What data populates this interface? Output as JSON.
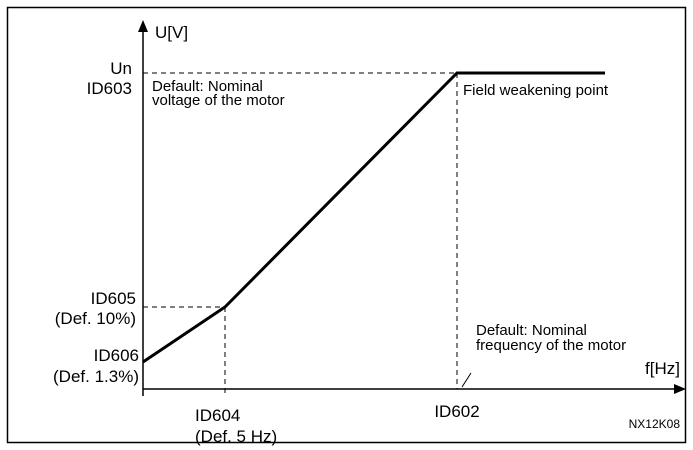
{
  "axes": {
    "y_label": "U[V]",
    "x_label": "f[Hz]"
  },
  "y_points": [
    {
      "lines": [
        "Un",
        "ID603"
      ]
    },
    {
      "lines": [
        "ID605",
        "(Def. 10%)"
      ]
    },
    {
      "lines": [
        "ID606",
        "(Def. 1.3%)"
      ]
    }
  ],
  "x_points": [
    {
      "lines": [
        "ID604",
        "(Def. 5 Hz)"
      ]
    },
    {
      "lines": [
        "ID602"
      ]
    }
  ],
  "annotations": [
    {
      "lines": [
        "Default: Nominal",
        "voltage of the motor"
      ]
    },
    {
      "lines": [
        "Field weakening point"
      ]
    },
    {
      "lines": [
        "Default: Nominal",
        "frequency of the motor"
      ]
    }
  ],
  "code": "NX12K08"
}
